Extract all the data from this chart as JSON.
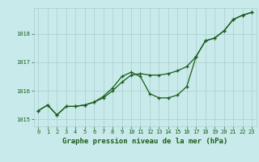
{
  "xlabel": "Graphe pression niveau de la mer (hPa)",
  "x": [
    0,
    1,
    2,
    3,
    4,
    5,
    6,
    7,
    8,
    9,
    10,
    11,
    12,
    13,
    14,
    15,
    16,
    17,
    18,
    19,
    20,
    21,
    22,
    23
  ],
  "series1": [
    1015.3,
    1015.5,
    1015.15,
    1015.45,
    1015.45,
    1015.5,
    1015.6,
    1015.75,
    1016.0,
    1016.3,
    1016.55,
    1016.6,
    1016.55,
    1016.55,
    1016.6,
    1016.7,
    1016.85,
    1017.2,
    1017.75,
    1017.85,
    1018.1,
    1018.5,
    1018.65,
    1018.75
  ],
  "series2": [
    1015.3,
    1015.5,
    1015.15,
    1015.45,
    1015.45,
    1015.5,
    1015.6,
    1015.8,
    1016.1,
    1016.5,
    1016.65,
    1016.5,
    1015.9,
    1015.75,
    1015.75,
    1015.85,
    1016.15,
    1017.2,
    1017.75,
    1017.85,
    1018.1,
    1018.5,
    1018.65,
    1018.75
  ],
  "line_color": "#1a5c1a",
  "bg_color": "#c8eaea",
  "grid_color": "#aacccc",
  "text_color": "#1a5c1a",
  "ylim": [
    1014.75,
    1018.9
  ],
  "yticks": [
    1015,
    1016,
    1017,
    1018
  ],
  "xticks": [
    0,
    1,
    2,
    3,
    4,
    5,
    6,
    7,
    8,
    9,
    10,
    11,
    12,
    13,
    14,
    15,
    16,
    17,
    18,
    19,
    20,
    21,
    22,
    23
  ],
  "marker": "+",
  "markersize": 3.5,
  "linewidth": 0.9
}
